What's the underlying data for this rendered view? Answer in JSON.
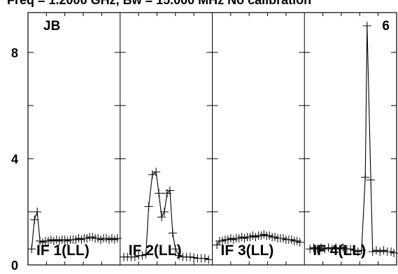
{
  "chart_data": {
    "type": "line",
    "title": "Freq = 1.2000 GHz, Bw = 15.000 MHz No calibration",
    "ylim": [
      0,
      9.5
    ],
    "yticks": [
      0,
      4,
      8
    ],
    "ytick_labels": [
      "0",
      "4",
      "8"
    ],
    "grid": false,
    "line_color": "#000000",
    "panels": [
      {
        "label": "IF 1(LL)",
        "corner_label": "JB",
        "points": [
          [
            0.04,
            0.6
          ],
          [
            0.07,
            1.7
          ],
          [
            0.1,
            2.0
          ],
          [
            0.13,
            0.9
          ],
          [
            0.16,
            0.85
          ],
          [
            0.19,
            0.9
          ],
          [
            0.22,
            0.9
          ],
          [
            0.25,
            0.95
          ],
          [
            0.28,
            0.9
          ],
          [
            0.31,
            0.95
          ],
          [
            0.34,
            0.9
          ],
          [
            0.37,
            0.95
          ],
          [
            0.4,
            0.95
          ],
          [
            0.43,
            0.9
          ],
          [
            0.46,
            0.95
          ],
          [
            0.49,
            0.95
          ],
          [
            0.52,
            0.95
          ],
          [
            0.55,
            1.0
          ],
          [
            0.58,
            0.95
          ],
          [
            0.61,
            1.0
          ],
          [
            0.64,
            1.0
          ],
          [
            0.67,
            1.05
          ],
          [
            0.7,
            1.05
          ],
          [
            0.73,
            1.0
          ],
          [
            0.76,
            1.0
          ],
          [
            0.79,
            0.95
          ],
          [
            0.82,
            1.0
          ],
          [
            0.85,
            1.0
          ],
          [
            0.88,
            0.95
          ],
          [
            0.91,
            1.0
          ],
          [
            0.94,
            0.95
          ],
          [
            0.97,
            1.0
          ]
        ]
      },
      {
        "label": "IF 2(LL)",
        "corner_label": "",
        "points": [
          [
            0.04,
            0.3
          ],
          [
            0.08,
            0.3
          ],
          [
            0.12,
            0.3
          ],
          [
            0.16,
            0.3
          ],
          [
            0.2,
            0.35
          ],
          [
            0.24,
            0.35
          ],
          [
            0.28,
            0.4
          ],
          [
            0.31,
            2.2
          ],
          [
            0.35,
            3.4
          ],
          [
            0.39,
            3.5
          ],
          [
            0.42,
            2.7
          ],
          [
            0.45,
            1.8
          ],
          [
            0.48,
            2.0
          ],
          [
            0.51,
            2.7
          ],
          [
            0.54,
            2.8
          ],
          [
            0.57,
            1.2
          ],
          [
            0.6,
            0.6
          ],
          [
            0.64,
            0.35
          ],
          [
            0.68,
            0.3
          ],
          [
            0.72,
            0.3
          ],
          [
            0.76,
            0.3
          ],
          [
            0.8,
            0.28
          ],
          [
            0.84,
            0.25
          ],
          [
            0.88,
            0.25
          ],
          [
            0.92,
            0.25
          ],
          [
            0.96,
            0.2
          ]
        ]
      },
      {
        "label": "IF 3(LL)",
        "corner_label": "",
        "points": [
          [
            0.05,
            0.75
          ],
          [
            0.08,
            0.9
          ],
          [
            0.11,
            0.9
          ],
          [
            0.14,
            0.95
          ],
          [
            0.17,
            0.95
          ],
          [
            0.2,
            1.0
          ],
          [
            0.23,
            0.95
          ],
          [
            0.26,
            1.0
          ],
          [
            0.29,
            1.0
          ],
          [
            0.32,
            1.05
          ],
          [
            0.35,
            1.0
          ],
          [
            0.38,
            1.05
          ],
          [
            0.41,
            1.05
          ],
          [
            0.44,
            1.1
          ],
          [
            0.47,
            1.05
          ],
          [
            0.5,
            1.1
          ],
          [
            0.53,
            1.1
          ],
          [
            0.56,
            1.15
          ],
          [
            0.59,
            1.1
          ],
          [
            0.62,
            1.1
          ],
          [
            0.65,
            1.05
          ],
          [
            0.68,
            1.05
          ],
          [
            0.71,
            1.0
          ],
          [
            0.74,
            1.0
          ],
          [
            0.77,
            1.0
          ],
          [
            0.8,
            0.95
          ],
          [
            0.83,
            0.95
          ],
          [
            0.86,
            0.95
          ],
          [
            0.89,
            0.9
          ],
          [
            0.92,
            0.9
          ],
          [
            0.95,
            0.85
          ]
        ]
      },
      {
        "label": "IF 4(LL)",
        "corner_label": "6",
        "points": [
          [
            0.06,
            0.6
          ],
          [
            0.1,
            0.65
          ],
          [
            0.14,
            0.6
          ],
          [
            0.18,
            0.65
          ],
          [
            0.22,
            0.6
          ],
          [
            0.26,
            0.65
          ],
          [
            0.3,
            0.6
          ],
          [
            0.34,
            0.65
          ],
          [
            0.38,
            0.6
          ],
          [
            0.42,
            0.65
          ],
          [
            0.46,
            0.6
          ],
          [
            0.5,
            0.6
          ],
          [
            0.54,
            0.55
          ],
          [
            0.58,
            0.5
          ],
          [
            0.62,
            0.55
          ],
          [
            0.66,
            3.3
          ],
          [
            0.68,
            9.0
          ],
          [
            0.72,
            3.2
          ],
          [
            0.74,
            0.5
          ],
          [
            0.78,
            0.55
          ],
          [
            0.82,
            0.5
          ],
          [
            0.86,
            0.55
          ],
          [
            0.9,
            0.5
          ],
          [
            0.94,
            0.5
          ],
          [
            0.97,
            0.45
          ]
        ]
      }
    ]
  }
}
